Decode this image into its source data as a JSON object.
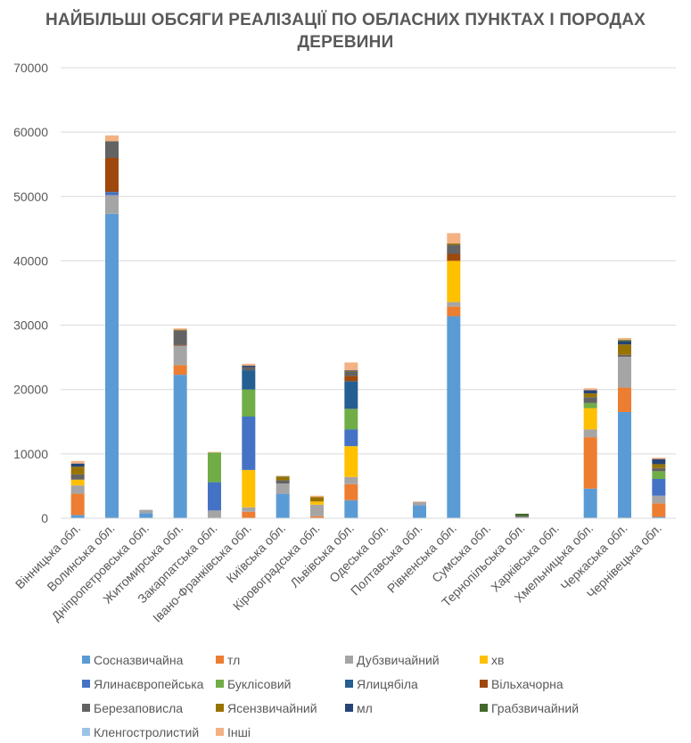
{
  "chart_data": {
    "type": "bar",
    "stacked": true,
    "title": "НАЙБІЛЬШІ ОБСЯГИ РЕАЛІЗАЦІЇ ПО ОБЛАСНИХ ПУНКТАХ І ПОРОДАХ ДЕРЕВИНИ",
    "xlabel": "",
    "ylabel": "",
    "ylim": [
      0,
      70000
    ],
    "yticks": [
      "0",
      "10000",
      "20000",
      "30000",
      "40000",
      "50000",
      "60000",
      "70000"
    ],
    "grid": true,
    "legend_position": "bottom",
    "categories": [
      "Вінницька обл.",
      "Волинська обл.",
      "Дніпропетровська обл.",
      "Житомирська обл.",
      "Закарпатська обл.",
      "Івано-Франківська обл.",
      "Київська обл.",
      "Кіровоградська обл.",
      "Львівська обл.",
      "Одеська обл.",
      "Полтавська обл.",
      "Рівненська обл.",
      "Сумська обл.",
      "Тернопільська обл.",
      "Харківська обл.",
      "Хмельницька обл.",
      "Черкаська обл.",
      "Чернівецька обл."
    ],
    "series": [
      {
        "name": "Сосназвичайна",
        "color": "#5b9bd5",
        "values": [
          500,
          47300,
          800,
          22300,
          0,
          0,
          3800,
          0,
          2800,
          0,
          2000,
          31400,
          0,
          0,
          0,
          4600,
          16500,
          200
        ]
      },
      {
        "name": "тл",
        "color": "#ed7d31",
        "values": [
          3300,
          0,
          0,
          1500,
          0,
          1000,
          0,
          300,
          2500,
          0,
          0,
          1500,
          0,
          0,
          0,
          8000,
          3800,
          2100
        ]
      },
      {
        "name": "Дубзвичайний",
        "color": "#a5a5a5",
        "values": [
          1300,
          2900,
          500,
          3000,
          1200,
          700,
          1600,
          1800,
          1100,
          0,
          500,
          700,
          0,
          200,
          0,
          1200,
          4800,
          1200
        ]
      },
      {
        "name": "хв",
        "color": "#ffc000",
        "values": [
          900,
          0,
          0,
          0,
          0,
          5800,
          0,
          500,
          4800,
          0,
          0,
          6400,
          0,
          0,
          0,
          3300,
          0,
          0
        ]
      },
      {
        "name": "Ялинаєвропейська",
        "color": "#4472c4",
        "values": [
          0,
          500,
          0,
          0,
          4400,
          8300,
          0,
          0,
          2600,
          0,
          0,
          0,
          0,
          0,
          0,
          0,
          0,
          2600
        ]
      },
      {
        "name": "Буклісовий",
        "color": "#70ad47",
        "values": [
          0,
          0,
          0,
          0,
          4600,
          4200,
          0,
          0,
          3200,
          0,
          0,
          0,
          0,
          0,
          0,
          800,
          0,
          1200
        ]
      },
      {
        "name": "Ялицябіла",
        "color": "#255e91",
        "values": [
          0,
          0,
          0,
          0,
          0,
          3000,
          0,
          0,
          4300,
          0,
          0,
          0,
          0,
          0,
          0,
          0,
          0,
          0
        ]
      },
      {
        "name": "Вільхачорна",
        "color": "#9e480e",
        "values": [
          0,
          5300,
          0,
          100,
          0,
          0,
          0,
          0,
          800,
          0,
          0,
          1100,
          0,
          0,
          0,
          0,
          0,
          0
        ]
      },
      {
        "name": "Березаповисла",
        "color": "#636363",
        "values": [
          800,
          2600,
          0,
          2300,
          0,
          500,
          500,
          0,
          700,
          0,
          0,
          1400,
          0,
          100,
          0,
          900,
          300,
          500
        ]
      },
      {
        "name": "Ясензвичайний",
        "color": "#997300",
        "values": [
          1200,
          0,
          0,
          100,
          0,
          0,
          500,
          700,
          100,
          0,
          0,
          200,
          0,
          0,
          0,
          600,
          1600,
          600
        ]
      },
      {
        "name": "мл",
        "color": "#264478",
        "values": [
          500,
          0,
          0,
          0,
          0,
          200,
          0,
          0,
          100,
          0,
          0,
          0,
          0,
          0,
          0,
          500,
          500,
          800
        ]
      },
      {
        "name": "Грабзвичайний",
        "color": "#43682b",
        "values": [
          0,
          0,
          0,
          0,
          0,
          0,
          100,
          0,
          0,
          0,
          0,
          0,
          0,
          400,
          0,
          0,
          200,
          0
        ]
      },
      {
        "name": "Кленгостролистий",
        "color": "#9dc3e6",
        "values": [
          0,
          0,
          0,
          0,
          0,
          0,
          0,
          0,
          0,
          0,
          0,
          0,
          0,
          0,
          0,
          0,
          0,
          0
        ]
      },
      {
        "name": "Інші",
        "color": "#f4b183",
        "values": [
          400,
          900,
          0,
          200,
          100,
          300,
          100,
          200,
          1200,
          0,
          100,
          1600,
          0,
          0,
          0,
          300,
          300,
          200
        ]
      }
    ]
  }
}
